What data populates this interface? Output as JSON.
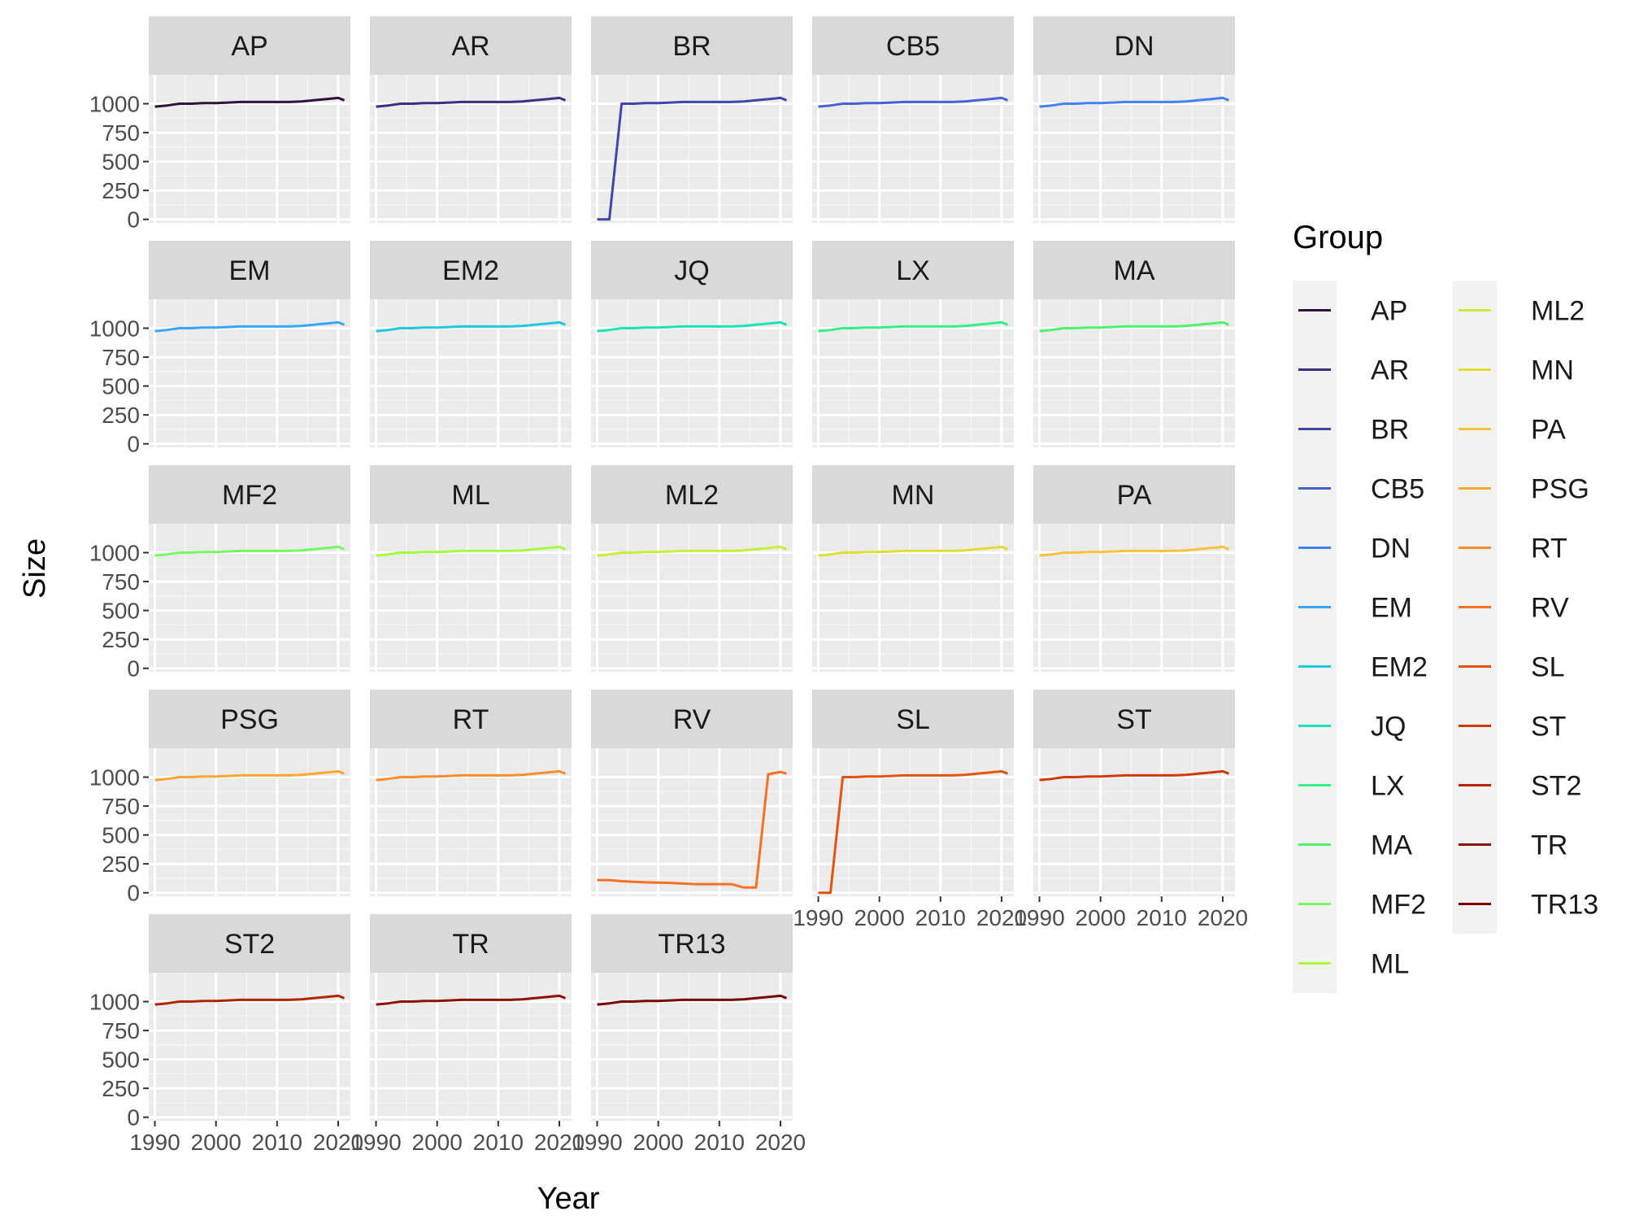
{
  "chart_data": {
    "type": "line",
    "layout": "facet_wrap",
    "xlabel": "Year",
    "ylabel": "Size",
    "legend": {
      "title": "Group",
      "position": "right"
    },
    "xlim": [
      1989,
      2022
    ],
    "ylim": [
      -30,
      1250
    ],
    "x_ticks": [
      1990,
      2000,
      2010,
      2020
    ],
    "x_tick_labels": [
      "1990",
      "2000",
      "2010",
      "2020"
    ],
    "y_ticks": [
      0,
      250,
      500,
      750,
      1000
    ],
    "y_tick_labels": [
      "0",
      "250",
      "500",
      "750",
      "1000"
    ],
    "x": [
      1990,
      1992,
      1994,
      1996,
      1998,
      2000,
      2002,
      2004,
      2006,
      2008,
      2010,
      2012,
      2014,
      2016,
      2018,
      2020,
      2021
    ],
    "series": [
      {
        "name": "AP",
        "color": "#30123B",
        "values": [
          975,
          985,
          1000,
          1000,
          1005,
          1005,
          1010,
          1015,
          1015,
          1015,
          1015,
          1015,
          1020,
          1030,
          1040,
          1050,
          1030
        ]
      },
      {
        "name": "AR",
        "color": "#3B2F80",
        "values": [
          975,
          985,
          1000,
          1000,
          1005,
          1005,
          1010,
          1015,
          1015,
          1015,
          1015,
          1015,
          1020,
          1030,
          1040,
          1050,
          1030
        ]
      },
      {
        "name": "BR",
        "color": "#4145AB",
        "values": [
          0,
          0,
          1000,
          1000,
          1005,
          1005,
          1010,
          1015,
          1015,
          1015,
          1015,
          1015,
          1020,
          1030,
          1040,
          1050,
          1030
        ]
      },
      {
        "name": "CB5",
        "color": "#4661D6",
        "values": [
          975,
          985,
          1000,
          1000,
          1005,
          1005,
          1010,
          1015,
          1015,
          1015,
          1015,
          1015,
          1020,
          1030,
          1040,
          1050,
          1030
        ]
      },
      {
        "name": "DN",
        "color": "#4680F6",
        "values": [
          975,
          985,
          1000,
          1000,
          1005,
          1005,
          1010,
          1015,
          1015,
          1015,
          1015,
          1015,
          1020,
          1030,
          1040,
          1050,
          1030
        ]
      },
      {
        "name": "EM",
        "color": "#36A8F9",
        "values": [
          975,
          985,
          1000,
          1000,
          1005,
          1005,
          1010,
          1015,
          1015,
          1015,
          1015,
          1015,
          1020,
          1030,
          1040,
          1050,
          1030
        ]
      },
      {
        "name": "EM2",
        "color": "#1FC8DE",
        "values": [
          975,
          985,
          1000,
          1000,
          1005,
          1005,
          1010,
          1015,
          1015,
          1015,
          1015,
          1015,
          1020,
          1030,
          1040,
          1050,
          1030
        ]
      },
      {
        "name": "JQ",
        "color": "#1AE4B6",
        "values": [
          975,
          985,
          1000,
          1000,
          1005,
          1005,
          1010,
          1015,
          1015,
          1015,
          1015,
          1015,
          1020,
          1030,
          1040,
          1050,
          1030
        ]
      },
      {
        "name": "LX",
        "color": "#34F086",
        "values": [
          975,
          985,
          1000,
          1000,
          1005,
          1005,
          1010,
          1015,
          1015,
          1015,
          1015,
          1015,
          1020,
          1030,
          1040,
          1050,
          1030
        ]
      },
      {
        "name": "MA",
        "color": "#4BF468",
        "values": [
          975,
          985,
          1000,
          1000,
          1005,
          1005,
          1010,
          1015,
          1015,
          1015,
          1015,
          1015,
          1020,
          1030,
          1040,
          1050,
          1030
        ]
      },
      {
        "name": "MF2",
        "color": "#72FE5E",
        "values": [
          975,
          985,
          1000,
          1000,
          1005,
          1005,
          1010,
          1015,
          1015,
          1015,
          1015,
          1015,
          1020,
          1030,
          1040,
          1050,
          1030
        ]
      },
      {
        "name": "ML",
        "color": "#A4FC3C",
        "values": [
          975,
          985,
          1000,
          1000,
          1005,
          1005,
          1010,
          1015,
          1015,
          1015,
          1015,
          1015,
          1020,
          1030,
          1040,
          1050,
          1030
        ]
      },
      {
        "name": "ML2",
        "color": "#C4F134",
        "values": [
          975,
          985,
          1000,
          1000,
          1005,
          1005,
          1010,
          1015,
          1015,
          1015,
          1015,
          1015,
          1020,
          1030,
          1040,
          1050,
          1030
        ]
      },
      {
        "name": "MN",
        "color": "#E1DD37",
        "values": [
          975,
          985,
          1000,
          1000,
          1005,
          1005,
          1010,
          1015,
          1015,
          1015,
          1015,
          1015,
          1020,
          1030,
          1040,
          1050,
          1030
        ]
      },
      {
        "name": "PA",
        "color": "#F6C33A",
        "values": [
          975,
          985,
          1000,
          1000,
          1005,
          1005,
          1010,
          1015,
          1015,
          1015,
          1015,
          1015,
          1020,
          1030,
          1040,
          1050,
          1030
        ]
      },
      {
        "name": "PSG",
        "color": "#FEA632",
        "values": [
          975,
          985,
          1000,
          1000,
          1005,
          1005,
          1010,
          1015,
          1015,
          1015,
          1015,
          1015,
          1020,
          1030,
          1040,
          1050,
          1030
        ]
      },
      {
        "name": "RT",
        "color": "#FB8E2A",
        "values": [
          975,
          985,
          1000,
          1000,
          1005,
          1005,
          1010,
          1015,
          1015,
          1015,
          1015,
          1015,
          1020,
          1030,
          1040,
          1050,
          1030
        ]
      },
      {
        "name": "RV",
        "color": "#F57222",
        "values": [
          110,
          110,
          100,
          95,
          90,
          88,
          85,
          80,
          75,
          75,
          75,
          75,
          45,
          45,
          1025,
          1045,
          1030
        ]
      },
      {
        "name": "SL",
        "color": "#E4540F",
        "values": [
          0,
          0,
          1000,
          1000,
          1005,
          1005,
          1010,
          1015,
          1015,
          1015,
          1015,
          1015,
          1020,
          1030,
          1040,
          1050,
          1030
        ]
      },
      {
        "name": "ST",
        "color": "#D03A05",
        "values": [
          975,
          985,
          1000,
          1000,
          1005,
          1005,
          1010,
          1015,
          1015,
          1015,
          1015,
          1015,
          1020,
          1030,
          1040,
          1050,
          1030
        ]
      },
      {
        "name": "ST2",
        "color": "#B02502",
        "values": [
          975,
          985,
          1000,
          1000,
          1005,
          1005,
          1010,
          1015,
          1015,
          1015,
          1015,
          1015,
          1020,
          1030,
          1040,
          1050,
          1030
        ]
      },
      {
        "name": "TR",
        "color": "#8E1203",
        "values": [
          975,
          985,
          1000,
          1000,
          1005,
          1005,
          1010,
          1015,
          1015,
          1015,
          1015,
          1015,
          1020,
          1030,
          1040,
          1050,
          1030
        ]
      },
      {
        "name": "TR13",
        "color": "#7A0403",
        "values": [
          975,
          985,
          1000,
          1000,
          1005,
          1005,
          1010,
          1015,
          1015,
          1015,
          1015,
          1015,
          1020,
          1030,
          1040,
          1050,
          1030
        ]
      }
    ]
  }
}
